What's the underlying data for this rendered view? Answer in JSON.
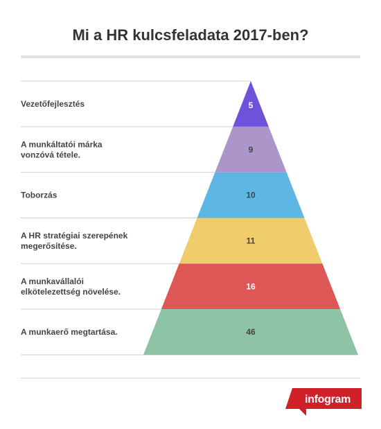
{
  "title": "Mi a HR kulcsfeladata 2017-ben?",
  "brand": "infogram",
  "chart_data": {
    "type": "pyramid",
    "title": "Mi a HR kulcsfeladata 2017-ben?",
    "categories": [
      "Vezetőfejlesztés",
      "A munkáltatói márka vonzóvá tétele.",
      "Toborzás",
      "A HR stratégiai szerepének megerősítése.",
      "A munkavállalói elkötelezettség növelése.",
      "A munkaerő megtartása."
    ],
    "label_lines": [
      [
        "Vezetőfejlesztés"
      ],
      [
        "A munkáltatói márka",
        "vonzóvá tétele."
      ],
      [
        "Toborzás"
      ],
      [
        "A HR stratégiai szerepének",
        "megerősítése."
      ],
      [
        "A munkavállalói",
        "elkötelezettség növelése."
      ],
      [
        "A munkaerő megtartása."
      ]
    ],
    "values": [
      5,
      9,
      10,
      11,
      16,
      46
    ],
    "colors": [
      "#6e52da",
      "#ab95c9",
      "#5db6e4",
      "#f0cd6c",
      "#de5656",
      "#8ec3a6"
    ],
    "value_label_colors": [
      "#ffffff",
      "#444444",
      "#444444",
      "#444444",
      "#ffffff",
      "#444444"
    ]
  }
}
